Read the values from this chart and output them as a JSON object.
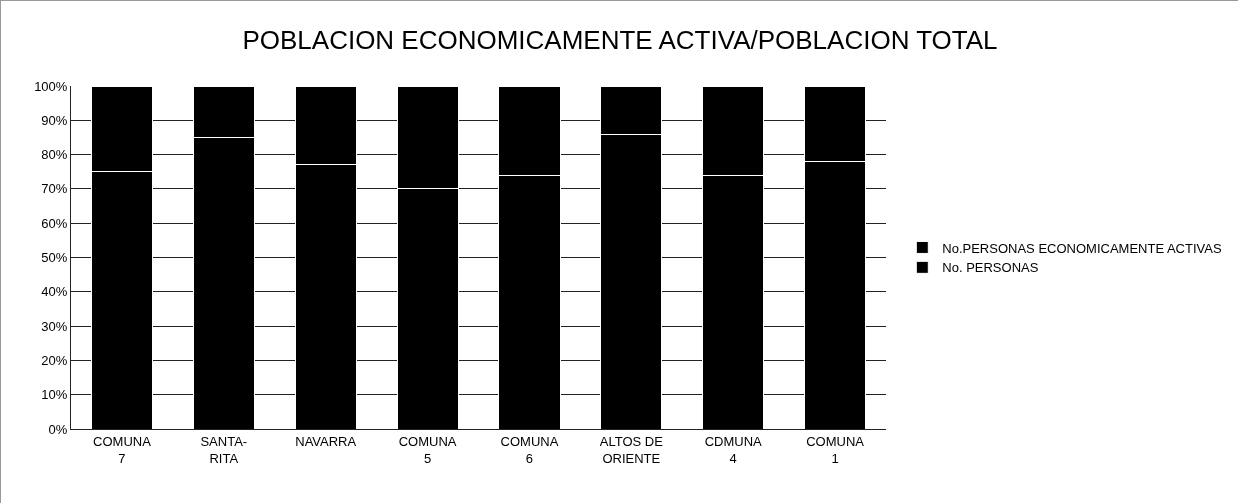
{
  "chart_data": {
    "type": "bar",
    "stacked": true,
    "title": "POBLACION ECONOMICAMENTE ACTIVA/POBLACION TOTAL",
    "categories": [
      "COMUNA\n7",
      "SANTA-\nRITA",
      "NAVARRA",
      "COMUNA\n5",
      "COMUNA\n6",
      "ALTOS DE\nORIENTE",
      "CDMUNA\n4",
      "COMUNA\n1"
    ],
    "series": [
      {
        "name": "No. PERSONAS",
        "color": "#000000",
        "values": [
          75,
          85,
          77,
          70,
          74,
          86,
          74,
          78
        ]
      },
      {
        "name": "No.PERSONAS ECONOMICAMENTE ACTIVAS",
        "color": "#000000",
        "values": [
          25,
          15,
          23,
          30,
          26,
          14,
          26,
          22
        ]
      }
    ],
    "ylim": [
      0,
      100
    ],
    "yticks": [
      {
        "value": 0,
        "label": "0%"
      },
      {
        "value": 10,
        "label": "10%"
      },
      {
        "value": 20,
        "label": "20%"
      },
      {
        "value": 30,
        "label": "30%"
      },
      {
        "value": 40,
        "label": "40%"
      },
      {
        "value": 50,
        "label": "50%"
      },
      {
        "value": 60,
        "label": "60%"
      },
      {
        "value": 70,
        "label": "70%"
      },
      {
        "value": 80,
        "label": "80%"
      },
      {
        "value": 90,
        "label": "90%"
      },
      {
        "value": 100,
        "label": "100%"
      }
    ],
    "grid": "y",
    "legend": "right"
  }
}
